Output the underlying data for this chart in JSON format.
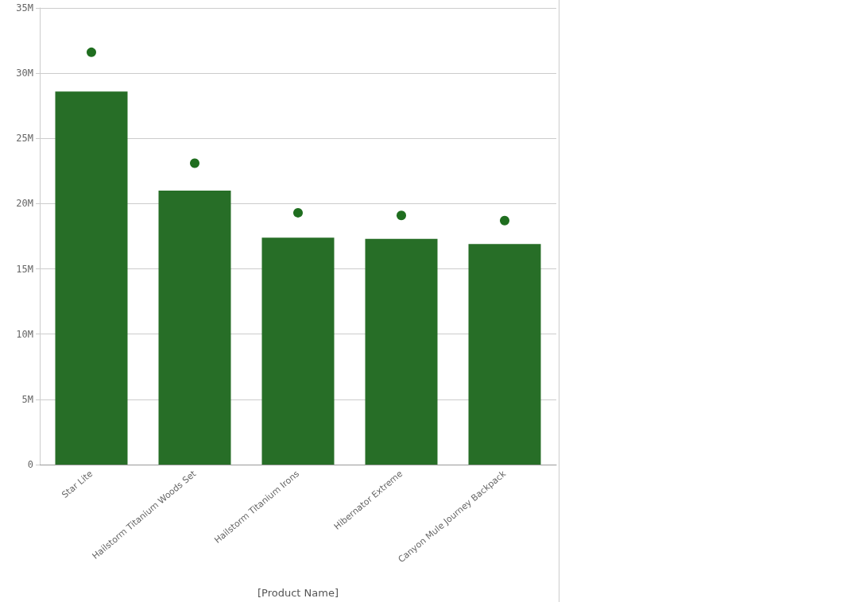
{
  "chart_data": {
    "type": "bar",
    "xlabel": "[Product Name]",
    "categories": [
      "Star Lite",
      "Hailstorm Titanium Woods Set",
      "Hailstorm Titanium Irons",
      "Hibernator Extreme",
      "Canyon Mule Journey Backpack"
    ],
    "series": [
      {
        "color": "#276e27",
        "values": [
          28.6,
          21.0,
          17.4,
          17.3,
          16.9
        ]
      },
      {
        "type": "scatter",
        "color": "#1f6e1f",
        "x": [
          "Star Lite",
          "Hailstorm Titanium Woods Set",
          "Hailstorm Titanium Irons",
          "Hibernator Extreme",
          "Canyon Mule Journey Backpack"
        ],
        "values": [
          31.6,
          23.1,
          19.3,
          19.1,
          18.7
        ]
      }
    ],
    "ylim": [
      0,
      35
    ],
    "yticks": [
      {
        "value": 0,
        "label": "0"
      },
      {
        "value": 5,
        "label": "5M"
      },
      {
        "value": 10,
        "label": "10M"
      },
      {
        "value": 15,
        "label": "15M"
      },
      {
        "value": 20,
        "label": "20M"
      },
      {
        "value": 25,
        "label": "25M"
      },
      {
        "value": 30,
        "label": "30M"
      },
      {
        "value": 35,
        "label": "35M"
      }
    ],
    "grid": "y",
    "marker": "circle"
  }
}
